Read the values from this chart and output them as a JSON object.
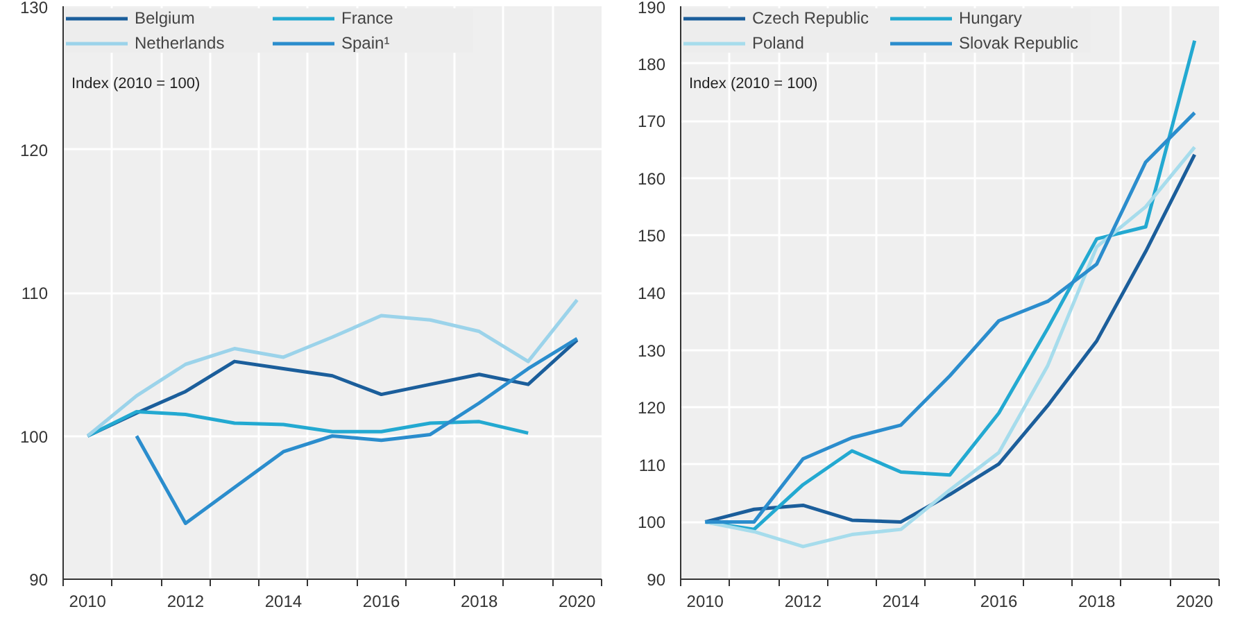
{
  "chart_data": [
    {
      "type": "line",
      "ylabel": "Index (2010 = 100)",
      "x": [
        2010,
        2011,
        2012,
        2013,
        2014,
        2015,
        2016,
        2017,
        2018,
        2019,
        2020
      ],
      "xlim": [
        2009.5,
        2020.5
      ],
      "xticks": [
        2010,
        2012,
        2014,
        2016,
        2018,
        2020
      ],
      "ylim": [
        90,
        130
      ],
      "yticks": [
        90,
        100,
        110,
        120,
        130
      ],
      "grid": true,
      "legend": "top",
      "series": [
        {
          "name": "Belgium",
          "color": "#1b5e9b",
          "values": [
            100,
            101.6,
            103.1,
            105.2,
            104.7,
            104.2,
            102.9,
            103.6,
            104.3,
            103.6,
            106.7
          ]
        },
        {
          "name": "France",
          "color": "#23a9d1",
          "values": [
            100,
            101.7,
            101.5,
            100.9,
            100.8,
            100.3,
            100.3,
            100.9,
            101.0,
            100.2,
            null
          ]
        },
        {
          "name": "Netherlands",
          "color": "#9bd3ea",
          "values": [
            100,
            102.8,
            105.0,
            106.1,
            105.5,
            106.9,
            108.4,
            108.1,
            107.3,
            105.2,
            109.5
          ]
        },
        {
          "name": "Spain¹",
          "color": "#2b8dcd",
          "values": [
            null,
            100,
            93.9,
            96.4,
            98.9,
            100,
            99.7,
            100.1,
            102.3,
            104.7,
            106.8
          ]
        }
      ]
    },
    {
      "type": "line",
      "ylabel": "Index (2010 = 100)",
      "x": [
        2010,
        2011,
        2012,
        2013,
        2014,
        2015,
        2016,
        2017,
        2018,
        2019,
        2020
      ],
      "xlim": [
        2009.5,
        2020.5
      ],
      "xticks": [
        2010,
        2012,
        2014,
        2016,
        2018,
        2020
      ],
      "ylim": [
        90,
        190
      ],
      "yticks": [
        90,
        100,
        110,
        120,
        130,
        140,
        150,
        160,
        170,
        180,
        190
      ],
      "grid": true,
      "legend": "top",
      "series": [
        {
          "name": "Czech Republic",
          "color": "#1b5e9b",
          "values": [
            100,
            102.2,
            102.9,
            100.3,
            100,
            104.8,
            110.1,
            120.3,
            131.6,
            147.2,
            164.1
          ]
        },
        {
          "name": "Hungary",
          "color": "#23a9d1",
          "values": [
            100,
            98.7,
            106.5,
            112.4,
            108.7,
            108.2,
            119,
            133.8,
            149.4,
            151.5,
            184
          ]
        },
        {
          "name": "Poland",
          "color": "#a6dcec",
          "values": [
            100,
            98.3,
            95.7,
            97.8,
            98.7,
            105.6,
            112.1,
            127.3,
            148,
            155,
            165.4
          ]
        },
        {
          "name": "Slovak Republic",
          "color": "#2b8dcd",
          "values": [
            100,
            100,
            111,
            114.7,
            116.9,
            125.5,
            135.1,
            138.5,
            145,
            162.8,
            171.4
          ]
        }
      ]
    }
  ]
}
